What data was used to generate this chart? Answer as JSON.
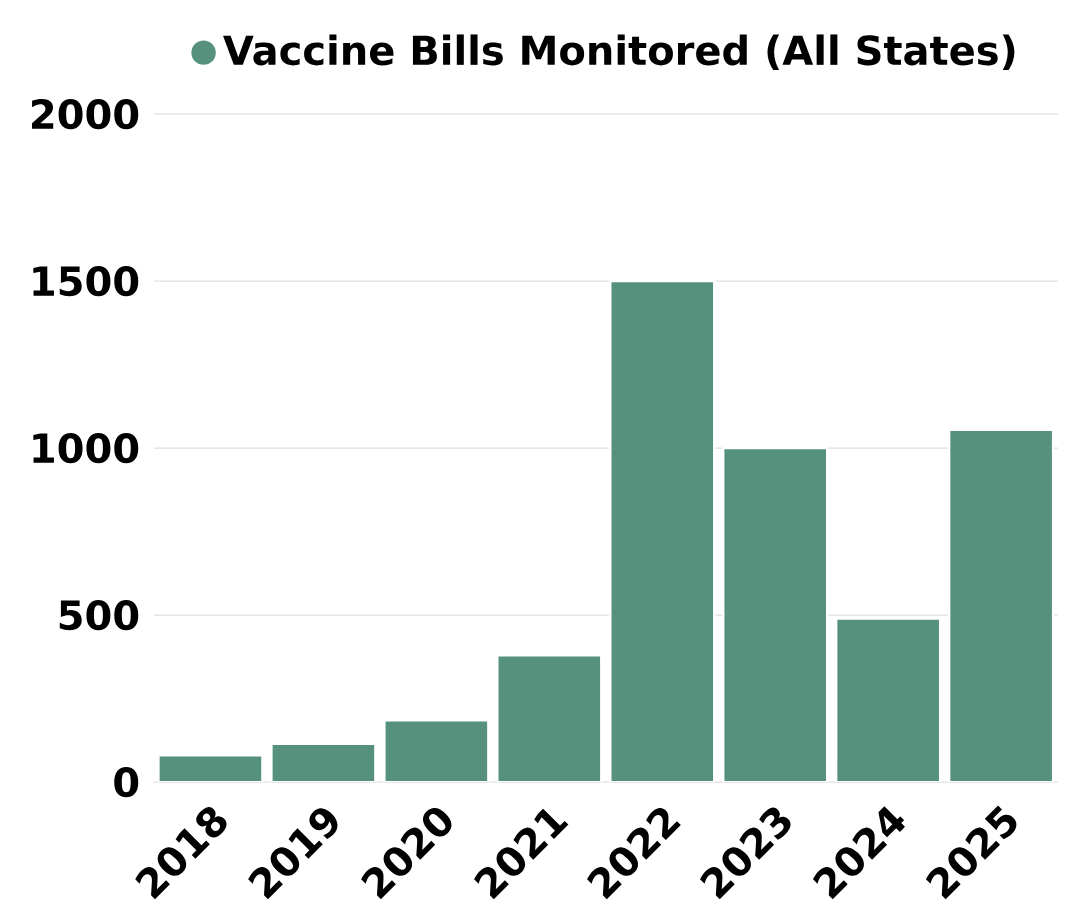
{
  "chart_data": {
    "type": "bar",
    "categories": [
      "2018",
      "2019",
      "2020",
      "2021",
      "2022",
      "2023",
      "2024",
      "2025"
    ],
    "series": [
      {
        "name": "Vaccine Bills Monitored (All States)",
        "color": "#55917d",
        "values": [
          80,
          115,
          185,
          380,
          1500,
          1000,
          490,
          1055
        ]
      }
    ],
    "ylim": [
      0,
      2000
    ],
    "yticks": [
      0,
      500,
      1000,
      1500,
      2000
    ],
    "grid": "y",
    "legend": "top"
  }
}
